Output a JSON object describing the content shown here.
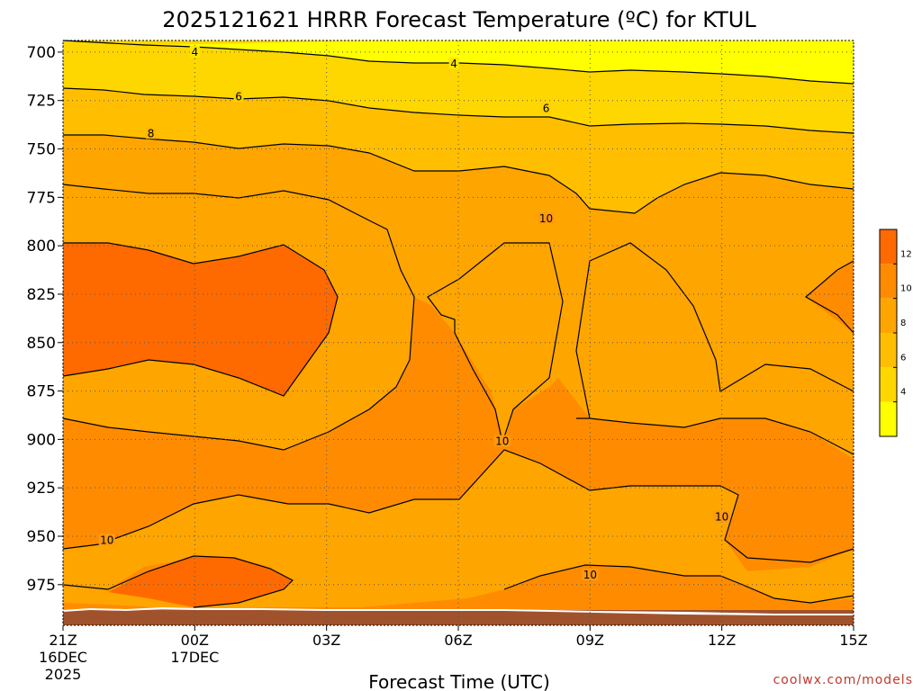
{
  "chart_data": {
    "type": "heatmap",
    "title": "2025121621 HRRR Forecast Temperature (ºC) for KTUL",
    "xlabel": "Forecast Time (UTC)",
    "ylabel": "",
    "credit": "coolwx.com/models",
    "x_ticks": [
      {
        "label": "21Z",
        "sub1": "16DEC",
        "sub2": "2025",
        "hour": 0
      },
      {
        "label": "00Z",
        "sub1": "17DEC",
        "sub2": "",
        "hour": 3
      },
      {
        "label": "03Z",
        "sub1": "",
        "sub2": "",
        "hour": 6
      },
      {
        "label": "06Z",
        "sub1": "",
        "sub2": "",
        "hour": 9
      },
      {
        "label": "09Z",
        "sub1": "",
        "sub2": "",
        "hour": 12
      },
      {
        "label": "12Z",
        "sub1": "",
        "sub2": "",
        "hour": 15
      },
      {
        "label": "15Z",
        "sub1": "",
        "sub2": "",
        "hour": 18
      }
    ],
    "y_ticks": [
      {
        "label": "700",
        "p": 700
      },
      {
        "label": "725",
        "p": 725
      },
      {
        "label": "750",
        "p": 750
      },
      {
        "label": "775",
        "p": 775
      },
      {
        "label": "800",
        "p": 800
      },
      {
        "label": "825",
        "p": 825
      },
      {
        "label": "850",
        "p": 850
      },
      {
        "label": "875",
        "p": 875
      },
      {
        "label": "900",
        "p": 900
      },
      {
        "label": "925",
        "p": 925
      },
      {
        "label": "950",
        "p": 950
      },
      {
        "label": "975",
        "p": 975
      }
    ],
    "xlim_hours": [
      0,
      18
    ],
    "ylim_hPa": [
      694,
      996
    ],
    "y_inverted": true,
    "grid": true,
    "colorbar": {
      "placement": "right",
      "ticks": [
        "12",
        "10",
        "8",
        "6",
        "4"
      ],
      "levels": [
        {
          "min": 2,
          "max": 4,
          "color": "#ffff00"
        },
        {
          "min": 4,
          "max": 6,
          "color": "#ffd700"
        },
        {
          "min": 6,
          "max": 8,
          "color": "#ffbf00"
        },
        {
          "min": 8,
          "max": 10,
          "color": "#ffa500"
        },
        {
          "min": 10,
          "max": 12,
          "color": "#ff8c00"
        },
        {
          "min": 12,
          "max": 14,
          "color": "#ff6a00"
        }
      ]
    },
    "contour_labels": [
      {
        "text": "4",
        "hour": 3.0,
        "p": 700
      },
      {
        "text": "4",
        "hour": 8.9,
        "p": 706
      },
      {
        "text": "6",
        "hour": 4.0,
        "p": 723
      },
      {
        "text": "6",
        "hour": 11.0,
        "p": 729
      },
      {
        "text": "8",
        "hour": 2.0,
        "p": 742
      },
      {
        "text": "10",
        "hour": 11.0,
        "p": 786
      },
      {
        "text": "10",
        "hour": 1.0,
        "p": 952
      },
      {
        "text": "10",
        "hour": 10.0,
        "p": 901
      },
      {
        "text": "10",
        "hour": 15.0,
        "p": 940
      },
      {
        "text": "10",
        "hour": 12.0,
        "p": 970
      }
    ],
    "ground_color": "#a0522d"
  }
}
